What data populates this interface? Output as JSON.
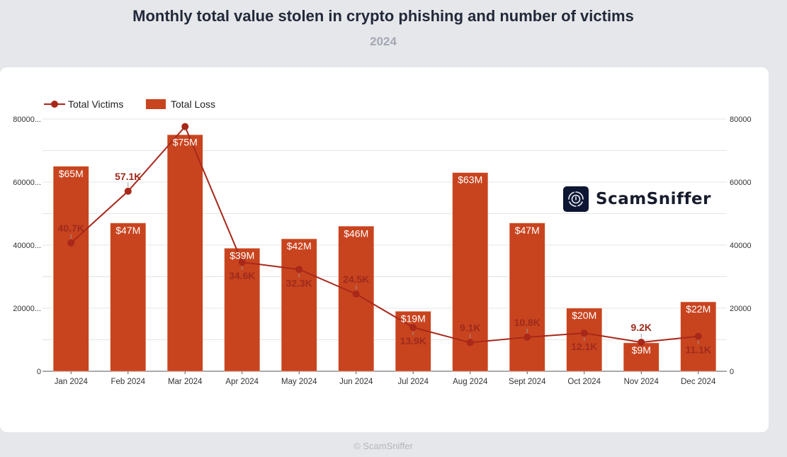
{
  "header": {
    "title": "Monthly total value stolen in crypto phishing and number of victims",
    "subtitle": "2024"
  },
  "footer": {
    "credit": "© ScamSniffer"
  },
  "logo": {
    "text": "ScamSniffer",
    "icon": "shield-sniffer-icon"
  },
  "colors": {
    "bar": "#c8441f",
    "line": "#a8281a",
    "label": "#9e2a1c",
    "grid": "#e4e4e4"
  },
  "chart_data": {
    "type": "bar+line",
    "title": "Monthly total value stolen in crypto phishing and number of victims",
    "subtitle": "2024",
    "categories": [
      "Jan 2024",
      "Feb 2024",
      "Mar 2024",
      "Apr 2024",
      "May 2024",
      "Jun 2024",
      "Jul 2024",
      "Aug 2024",
      "Sept 2024",
      "Oct 2024",
      "Nov 2024",
      "Dec 2024"
    ],
    "series": [
      {
        "name": "Total Victims",
        "type": "line",
        "axis": "left",
        "values": [
          40700,
          57100,
          77600,
          34600,
          32300,
          24500,
          13900,
          9100,
          10800,
          12100,
          9200,
          11100
        ],
        "labels": [
          "40.7K",
          "57.1K",
          "",
          "34.6K",
          "32.3K",
          "24.5K",
          "13.9K",
          "9.1K",
          "10.8K",
          "12.1K",
          "9.2K",
          "11.1K"
        ]
      },
      {
        "name": "Total Loss",
        "type": "bar",
        "axis": "right",
        "unit": "USD millions",
        "values": [
          65,
          47,
          75,
          39,
          42,
          46,
          19,
          63,
          47,
          20,
          9,
          22
        ],
        "labels": [
          "$65M",
          "$47M",
          "$75M",
          "$39M",
          "$42M",
          "$46M",
          "$19M",
          "$63M",
          "$47M",
          "$20M",
          "$9M",
          "$22M"
        ]
      }
    ],
    "left_axis": {
      "range": [
        0,
        80000
      ],
      "ticks": [
        "0",
        "20000...",
        "40000...",
        "60000...",
        "80000..."
      ]
    },
    "right_axis": {
      "range": [
        0,
        80000
      ],
      "ticks": [
        "0",
        "20000",
        "40000",
        "60000",
        "80000"
      ]
    },
    "grid": true,
    "legend": "top-left"
  }
}
